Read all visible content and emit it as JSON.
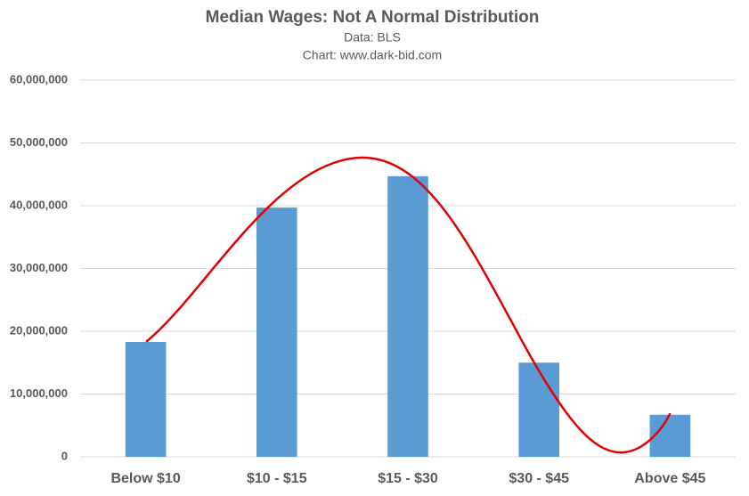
{
  "chart_data": {
    "type": "bar",
    "title": "Median Wages: Not A Normal Distribution",
    "subtitle": [
      "Data: BLS",
      "Chart: www.dark-bid.com"
    ],
    "categories": [
      "Below $10",
      "$10 - $15",
      "$15 - $30",
      "$30 - $45",
      "Above $45"
    ],
    "values": [
      18300000,
      39700000,
      44700000,
      15000000,
      6700000
    ],
    "color": "#5b9bd5",
    "ylim": [
      0,
      60000000
    ],
    "yticks": [
      0,
      {
        "value": 10000000,
        "label": "10,000,000"
      },
      {
        "value": 20000000,
        "label": "20,000,000"
      },
      {
        "value": 30000000,
        "label": "30,000,000"
      },
      {
        "value": 40000000,
        "label": "40,000,000"
      },
      {
        "value": 50000000,
        "label": "50,000,000"
      },
      {
        "value": 60000000,
        "label": "60,000,000"
      }
    ],
    "grid": true
  }
}
